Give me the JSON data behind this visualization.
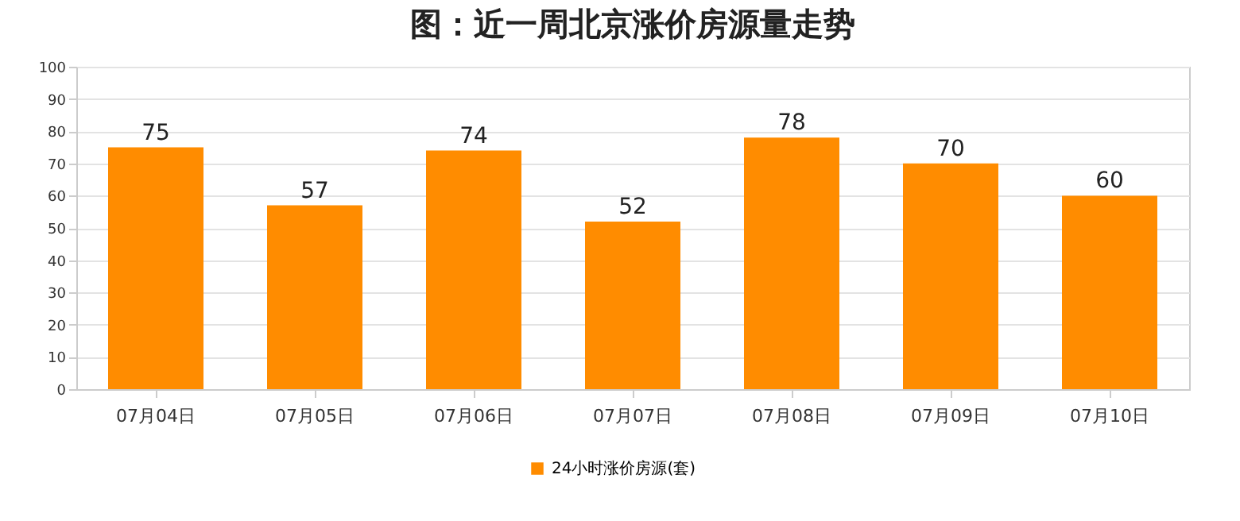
{
  "chart_data": {
    "type": "bar",
    "title": "图：近一周北京涨价房源量走势",
    "categories": [
      "07月04日",
      "07月05日",
      "07月06日",
      "07月07日",
      "07月08日",
      "07月09日",
      "07月10日"
    ],
    "series": [
      {
        "name": "24小时涨价房源(套)",
        "color": "#ff8c00",
        "values": [
          75,
          57,
          74,
          52,
          78,
          70,
          60
        ]
      }
    ],
    "ylim": [
      0,
      100
    ],
    "yticks": [
      0,
      10,
      20,
      30,
      40,
      50,
      60,
      70,
      80,
      90,
      100
    ],
    "grid": "y",
    "legend": "bottom",
    "data_labels": true
  }
}
